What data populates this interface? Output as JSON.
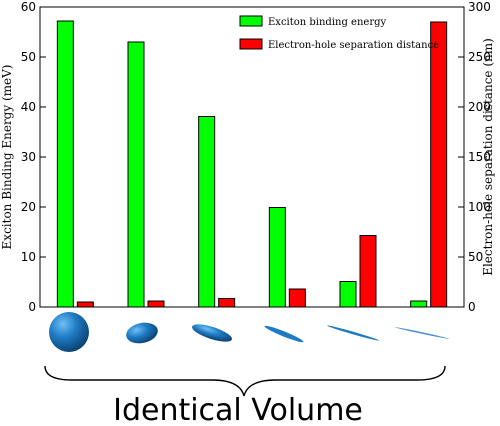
{
  "chart_data": {
    "type": "bar",
    "categories": [
      "",
      "",
      "",
      "",
      "",
      ""
    ],
    "series": [
      {
        "name": "Exciton binding energy",
        "axis": "left",
        "color": "#00ff00",
        "values": [
          57.2,
          53,
          38.1,
          19.9,
          5.1,
          1.2
        ]
      },
      {
        "name": "Electron-hole separation distance",
        "axis": "right",
        "color": "#ff0000",
        "values": [
          5,
          6,
          8.5,
          18,
          71.5,
          285
        ]
      }
    ],
    "ylabel": "Exciton Binding Energy (meV)",
    "ylabel_right": "Electron-hole separation distance (nm)",
    "ylim": [
      0,
      60
    ],
    "ylim_right": [
      0,
      300
    ],
    "yticks": [
      "0",
      "10",
      "20",
      "30",
      "40",
      "50",
      "60"
    ],
    "yticks_right": [
      "0",
      "50",
      "100",
      "150",
      "200",
      "250",
      "300"
    ],
    "legend_position": "top-right",
    "grid": false
  },
  "shapes": [
    "sphere",
    "oblate-ellipsoid",
    "flattened-ellipsoid",
    "thin-disk",
    "very-thin-disk",
    "thinnest-disk"
  ],
  "shape_color": "#1f7cc4",
  "caption": "Identical Volume"
}
